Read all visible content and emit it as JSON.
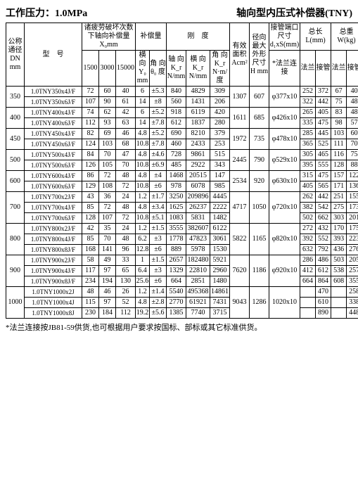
{
  "header": {
    "left": "工作压力：1.0MPa",
    "right": "轴向型内压式补偿器(TNY)"
  },
  "cols": {
    "c1": "公称\n通径\nDN\nmm",
    "c2": "型　号",
    "c3": "诸疲劳破坏次数\n下轴向补偿量\nX₀mm",
    "c3a": "1500",
    "c3b": "3000",
    "c3c": "15000",
    "c4": "补偿量",
    "c4a": "横\n向\nY₀\nmm",
    "c4b": "角\n向\nθ₀\n度",
    "c5": "刚　度",
    "c5a": "轴\n向K_r\nN/mm",
    "c5b": "横\n向K_r\nN/mm",
    "c5c": "角\n向K_r\nN·m/度",
    "c6": "有效\n面积\nAcm²",
    "c7": "径向\n最大\n外形\n尺寸\nH\nmm",
    "c8": "接管端口\n尺寸\nd₁xS(mm)",
    "c8a": "*法兰连接",
    "c9": "总长\nL(mm)",
    "c9a": "法兰",
    "c9b": "接管",
    "c10": "总重\nW(kg)",
    "c10a": "法兰",
    "c10b": "接管"
  },
  "groups": [
    {
      "dn": "350",
      "A": "1307",
      "H": "607",
      "port": "φ377x10",
      "rows": [
        {
          "m": "1.0TNY350x4J/F",
          "v": [
            "72",
            "60",
            "40",
            "6",
            "±5.3",
            "840",
            "4829",
            "309",
            "252",
            "372",
            "67",
            "40"
          ]
        },
        {
          "m": "1.0TNY350x6J/F",
          "v": [
            "107",
            "90",
            "61",
            "14",
            "±8",
            "560",
            "1431",
            "206",
            "322",
            "442",
            "75",
            "48"
          ]
        }
      ]
    },
    {
      "dn": "400",
      "A": "1611",
      "H": "685",
      "port": "φ426x10",
      "rows": [
        {
          "m": "1.0TNY400x4J/F",
          "v": [
            "74",
            "62",
            "42",
            "6",
            "±5.2",
            "918",
            "6119",
            "420",
            "265",
            "405",
            "83",
            "48"
          ]
        },
        {
          "m": "1.0TNY400x6J/F",
          "v": [
            "112",
            "93",
            "63",
            "14",
            "±7.8",
            "612",
            "1837",
            "280",
            "335",
            "475",
            "98",
            "57"
          ]
        }
      ]
    },
    {
      "dn": "450",
      "A": "1972",
      "H": "735",
      "port": "φ478x10",
      "rows": [
        {
          "m": "1.0TNY450x4J/F",
          "v": [
            "82",
            "69",
            "46",
            "4.8",
            "±5.2",
            "690",
            "8210",
            "379",
            "285",
            "445",
            "103",
            "60"
          ]
        },
        {
          "m": "1.0TNY450x6J/F",
          "v": [
            "124",
            "103",
            "68",
            "10.8",
            "±7.8",
            "460",
            "2433",
            "253",
            "365",
            "525",
            "111",
            "70"
          ]
        }
      ]
    },
    {
      "dn": "500",
      "A": "2445",
      "H": "790",
      "port": "φ529x10",
      "rows": [
        {
          "m": "1.0TNY500x4J/F",
          "v": [
            "84",
            "70",
            "47",
            "4.8",
            "±4.6",
            "728",
            "9861",
            "515",
            "305",
            "465",
            "116",
            "75"
          ]
        },
        {
          "m": "1.0TNY500x6J/F",
          "v": [
            "126",
            "105",
            "70",
            "10.8",
            "±6.9",
            "485",
            "2922",
            "343",
            "395",
            "555",
            "128",
            "88"
          ]
        }
      ]
    },
    {
      "dn": "600",
      "A": "2534",
      "H": "920",
      "port": "φ630x10",
      "rows": [
        {
          "m": "1.0TNY600x4J/F",
          "v": [
            "86",
            "72",
            "48",
            "4.8",
            "±4",
            "1468",
            "20515",
            "147",
            "315",
            "475",
            "157",
            "122"
          ]
        },
        {
          "m": "1.0TNY600x6J/F",
          "v": [
            "129",
            "108",
            "72",
            "10.8",
            "±6",
            "978",
            "6078",
            "985",
            "405",
            "565",
            "171",
            "136"
          ]
        }
      ]
    },
    {
      "dn": "700",
      "A": "4717",
      "H": "1050",
      "port": "φ720x10",
      "rows": [
        {
          "m": "1.0TNY700x2J/F",
          "v": [
            "43",
            "36",
            "24",
            "1.2",
            "±1.7",
            "3250",
            "209896",
            "4445",
            "262",
            "442",
            "251",
            "155"
          ]
        },
        {
          "m": "1.0TNY700x4J/F",
          "v": [
            "85",
            "72",
            "48",
            "4.8",
            "±3.4",
            "1625",
            "26237",
            "2222",
            "382",
            "542",
            "275",
            "173"
          ]
        },
        {
          "m": "1.0TNY700x6J/F",
          "v": [
            "128",
            "107",
            "72",
            "10.8",
            "±5.1",
            "1083",
            "5831",
            "1482",
            "502",
            "662",
            "303",
            "201"
          ]
        }
      ]
    },
    {
      "dn": "800",
      "A": "5822",
      "H": "1165",
      "port": "φ820x10",
      "rows": [
        {
          "m": "1.0TNY800x2J/F",
          "v": [
            "42",
            "35",
            "24",
            "1.2",
            "±1.5",
            "3555",
            "382607",
            "6122",
            "272",
            "432",
            "170",
            "175"
          ]
        },
        {
          "m": "1.0TNY800x4J/F",
          "v": [
            "85",
            "70",
            "48",
            "6.2",
            "±3",
            "1778",
            "47823",
            "3061",
            "392",
            "552",
            "393",
            "223"
          ]
        },
        {
          "m": "1.0TNY800x8J/F",
          "v": [
            "168",
            "141",
            "96",
            "12.8",
            "±6",
            "889",
            "5978",
            "1530",
            "632",
            "792",
            "436",
            "276"
          ]
        }
      ]
    },
    {
      "dn": "900",
      "A": "7620",
      "H": "1186",
      "port": "φ920x10",
      "rows": [
        {
          "m": "1.0TNY900x2J/F",
          "v": [
            "58",
            "49",
            "33",
            "1",
            "±1.5",
            "2657",
            "182480",
            "5921",
            "286",
            "486",
            "503",
            "205"
          ]
        },
        {
          "m": "1.0TNY900x4J/F",
          "v": [
            "117",
            "97",
            "65",
            "6.4",
            "±3",
            "1329",
            "22810",
            "2960",
            "412",
            "612",
            "538",
            "257"
          ]
        },
        {
          "m": "1.0TNY900x8J/F",
          "v": [
            "234",
            "194",
            "130",
            "25.6",
            "±6",
            "664",
            "2851",
            "1480",
            "664",
            "864",
            "608",
            "355"
          ]
        }
      ]
    },
    {
      "dn": "1000",
      "A": "9043",
      "H": "1286",
      "port": "1020x10",
      "rows": [
        {
          "m": "1.0TNY1000x2J",
          "v": [
            "48",
            "46",
            "26",
            "1.2",
            "±1.4",
            "5540",
            "495368",
            "14861",
            "",
            "470",
            "",
            "258"
          ]
        },
        {
          "m": "1.0TNY1000x4J",
          "v": [
            "115",
            "97",
            "52",
            "4.8",
            "±2.8",
            "2770",
            "61921",
            "7431",
            "",
            "610",
            "",
            "338"
          ]
        },
        {
          "m": "1.0TNY1000x8J",
          "v": [
            "230",
            "184",
            "112",
            "19.2",
            "±5.6",
            "1385",
            "7740",
            "3715",
            "",
            "890",
            "",
            "448"
          ]
        }
      ]
    }
  ],
  "footnote": "*法兰连接按JB81-59供货,也可根据用户要求按国标、部标或其它标准供货。"
}
